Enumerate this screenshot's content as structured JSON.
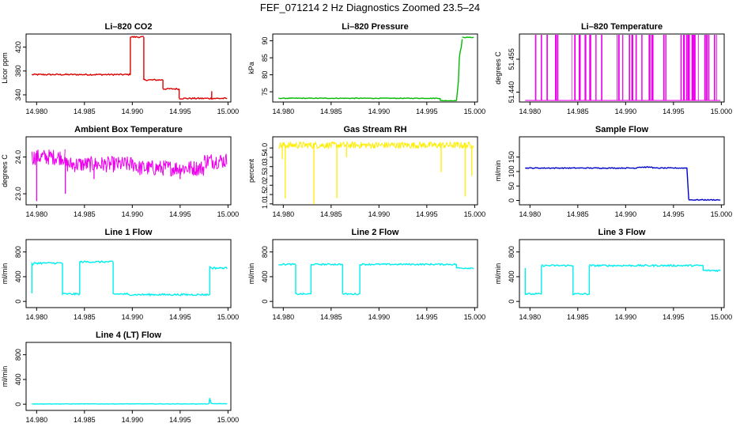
{
  "page": {
    "title": "FEF_071214  2 Hz Diagnostics Zoomed 23.5–24"
  },
  "chart_data": [
    {
      "type": "line",
      "title": "Li–820 CO2",
      "ylabel": "Licor ppm",
      "xlim": [
        14.9789,
        15.0003
      ],
      "ylim": [
        328,
        442
      ],
      "xticks": [
        14.98,
        14.985,
        14.99,
        14.995,
        15.0
      ],
      "xtick_labels": [
        "14.980",
        "14.985",
        "14.990",
        "14.995",
        "15.000"
      ],
      "yticks": [
        340,
        380,
        420
      ],
      "ytick_labels": [
        "340",
        "380",
        "420"
      ],
      "color": "#dd0000",
      "noise": 1.2,
      "series": [
        {
          "x": [
            14.9795,
            14.9898
          ],
          "y": [
            374,
            374
          ]
        },
        {
          "x": [
            14.9898,
            14.9898
          ],
          "y": [
            374,
            437
          ]
        },
        {
          "x": [
            14.9898,
            14.9912
          ],
          "y": [
            437,
            437
          ]
        },
        {
          "x": [
            14.9912,
            14.9912
          ],
          "y": [
            437,
            365
          ]
        },
        {
          "x": [
            14.9912,
            14.9932
          ],
          "y": [
            365,
            365
          ]
        },
        {
          "x": [
            14.9932,
            14.9932
          ],
          "y": [
            365,
            350
          ]
        },
        {
          "x": [
            14.9932,
            14.9949
          ],
          "y": [
            350,
            350
          ]
        },
        {
          "x": [
            14.9949,
            14.9949
          ],
          "y": [
            350,
            334
          ]
        },
        {
          "x": [
            14.9949,
            14.9999
          ],
          "y": [
            334,
            334
          ]
        },
        {
          "x": [
            14.9983,
            14.9983
          ],
          "y": [
            334,
            346
          ]
        }
      ]
    },
    {
      "type": "line",
      "title": "Li–820 Pressure",
      "ylabel": "kPa",
      "xlim": [
        14.9789,
        15.0003
      ],
      "ylim": [
        72,
        92
      ],
      "xticks": [
        14.98,
        14.985,
        14.99,
        14.995,
        15.0
      ],
      "xtick_labels": [
        "14.980",
        "14.985",
        "14.990",
        "14.995",
        "15.000"
      ],
      "yticks": [
        75,
        80,
        85,
        90
      ],
      "ytick_labels": [
        "75",
        "80",
        "85",
        "90"
      ],
      "color": "#00bb00",
      "noise": 0.1,
      "series": [
        {
          "x": [
            14.9795,
            14.9964
          ],
          "y": [
            73.1,
            73.1
          ]
        },
        {
          "x": [
            14.9964,
            14.9964
          ],
          "y": [
            73.1,
            72.4
          ]
        },
        {
          "x": [
            14.9964,
            14.9981
          ],
          "y": [
            72.4,
            72.4
          ]
        },
        {
          "x": [
            14.9981,
            14.9983,
            14.9984,
            14.9985,
            14.9986,
            14.9987
          ],
          "y": [
            72.4,
            78,
            85,
            87,
            88,
            90.5
          ]
        },
        {
          "x": [
            14.9987,
            14.9999
          ],
          "y": [
            91,
            91
          ]
        }
      ]
    },
    {
      "type": "line",
      "title": "Li–820 Temperature",
      "ylabel": "degrees C",
      "xlim": [
        14.9789,
        15.0003
      ],
      "ylim": [
        51.4355,
        51.4665
      ],
      "xticks": [
        14.98,
        14.985,
        14.99,
        14.995,
        15.0
      ],
      "xtick_labels": [
        "14.980",
        "14.985",
        "14.990",
        "14.995",
        "15.000"
      ],
      "yticks": [
        51.44,
        51.455
      ],
      "ytick_labels": [
        "51.440",
        "51.455"
      ],
      "color": "#ee00ee",
      "spike_style": "toggle",
      "base": 51.4362,
      "spike_top": 51.4665,
      "spikes": [
        14.9806,
        14.9812,
        14.9818,
        14.9827,
        14.9829,
        14.9844,
        14.9847,
        14.9852,
        14.9858,
        14.9863,
        14.9869,
        14.9875,
        14.9891,
        14.9893,
        14.9897,
        14.9904,
        14.9907,
        14.9911,
        14.9917,
        14.9925,
        14.9928,
        14.994,
        14.9942,
        14.9958,
        14.9961,
        14.9964,
        14.9966,
        14.997,
        14.9972,
        14.9976,
        14.9983,
        14.9985,
        14.9987,
        14.9993,
        14.9995
      ],
      "x_range": [
        14.9795,
        14.9999
      ]
    },
    {
      "type": "line",
      "title": "Ambient Box Temperature",
      "ylabel": "degrees C",
      "xlim": [
        14.9789,
        15.0003
      ],
      "ylim": [
        22.7,
        24.55
      ],
      "xticks": [
        14.98,
        14.985,
        14.99,
        14.995,
        15.0
      ],
      "xtick_labels": [
        "14.980",
        "14.985",
        "14.990",
        "14.995",
        "15.000"
      ],
      "yticks": [
        23.0,
        24.0
      ],
      "ytick_labels": [
        "23.0",
        "24.0"
      ],
      "color": "#ee00ee",
      "noise_band": 0.22,
      "x_range": [
        14.9795,
        14.9999
      ],
      "segments": [
        {
          "x0": 14.9795,
          "x1": 14.983,
          "y": 24.0
        },
        {
          "x0": 14.983,
          "x1": 14.9905,
          "y": 23.8
        },
        {
          "x0": 14.9905,
          "x1": 14.9975,
          "y": 23.7
        },
        {
          "x0": 14.9975,
          "x1": 14.9999,
          "y": 23.9
        }
      ],
      "drops": [
        {
          "x": 14.98,
          "y": 22.8
        },
        {
          "x": 14.983,
          "y": 23.0
        },
        {
          "x": 14.986,
          "y": 23.4
        },
        {
          "x": 14.995,
          "y": 23.4
        }
      ]
    },
    {
      "type": "line",
      "title": "Gas Stream RH",
      "ylabel": "percent",
      "xlim": [
        14.9789,
        15.0003
      ],
      "ylim": [
        0.95,
        4.6
      ],
      "xticks": [
        14.98,
        14.985,
        14.99,
        14.995,
        15.0
      ],
      "xtick_labels": [
        "14.980",
        "14.985",
        "14.990",
        "14.995",
        "15.000"
      ],
      "yticks": [
        1.0,
        1.5,
        2.0,
        2.5,
        3.0,
        3.5,
        4.0
      ],
      "ytick_labels": [
        "1.0",
        "1.5",
        "2.0",
        "2.5",
        "3.0",
        "3.5",
        "4.0"
      ],
      "color": "#ffee00",
      "noise_band": 0.18,
      "x_range": [
        14.9795,
        14.9999
      ],
      "segments": [
        {
          "x0": 14.9795,
          "x1": 14.9999,
          "y": 4.15
        }
      ],
      "drops": [
        {
          "x": 14.9799,
          "y": 3.4
        },
        {
          "x": 14.9802,
          "y": 1.3
        },
        {
          "x": 14.9832,
          "y": 1.0
        },
        {
          "x": 14.9856,
          "y": 1.3
        },
        {
          "x": 14.9866,
          "y": 3.5
        },
        {
          "x": 14.9965,
          "y": 2.7
        },
        {
          "x": 14.999,
          "y": 1.4
        },
        {
          "x": 14.9997,
          "y": 2.5
        }
      ]
    },
    {
      "type": "line",
      "title": "Sample Flow",
      "ylabel": "ml/min",
      "xlim": [
        14.9789,
        15.0003
      ],
      "ylim": [
        -15,
        220
      ],
      "xticks": [
        14.98,
        14.985,
        14.99,
        14.995,
        15.0
      ],
      "xtick_labels": [
        "14.980",
        "14.985",
        "14.990",
        "14.995",
        "15.000"
      ],
      "yticks": [
        0,
        50,
        100,
        150
      ],
      "ytick_labels": [
        "0",
        "50",
        "100",
        "150"
      ],
      "color": "#0000cc",
      "noise": 1.5,
      "series": [
        {
          "x": [
            14.9795,
            14.9912
          ],
          "y": [
            112,
            112
          ]
        },
        {
          "x": [
            14.9912,
            14.9912
          ],
          "y": [
            112,
            115
          ]
        },
        {
          "x": [
            14.9912,
            14.9928
          ],
          "y": [
            115,
            115
          ]
        },
        {
          "x": [
            14.9928,
            14.9928
          ],
          "y": [
            115,
            112
          ]
        },
        {
          "x": [
            14.9928,
            14.9964
          ],
          "y": [
            112,
            112
          ]
        },
        {
          "x": [
            14.9964,
            14.9966
          ],
          "y": [
            114,
            3
          ]
        },
        {
          "x": [
            14.9966,
            14.9999
          ],
          "y": [
            2,
            2
          ]
        }
      ]
    },
    {
      "type": "line",
      "title": "Line 1 Flow",
      "ylabel": "ml/min",
      "xlim": [
        14.9789,
        15.0003
      ],
      "ylim": [
        -100,
        1000
      ],
      "xticks": [
        14.98,
        14.985,
        14.99,
        14.995,
        15.0
      ],
      "xtick_labels": [
        "14.980",
        "14.985",
        "14.990",
        "14.995",
        "15.000"
      ],
      "yticks": [
        0,
        400,
        800
      ],
      "ytick_labels": [
        "0",
        "400",
        "800"
      ],
      "color": "#00eeee",
      "noise": 14,
      "series": [
        {
          "x": [
            14.9795,
            14.9795,
            14.9797,
            14.9797
          ],
          "y": [
            130,
            600,
            600,
            620
          ]
        },
        {
          "x": [
            14.9797,
            14.9827
          ],
          "y": [
            620,
            620
          ]
        },
        {
          "x": [
            14.9827,
            14.9827,
            14.9845,
            14.9845
          ],
          "y": [
            620,
            120,
            120,
            640
          ]
        },
        {
          "x": [
            14.9845,
            14.988
          ],
          "y": [
            640,
            640
          ]
        },
        {
          "x": [
            14.988,
            14.988,
            14.9895,
            14.9895
          ],
          "y": [
            640,
            120,
            120,
            110
          ]
        },
        {
          "x": [
            14.9895,
            14.9981
          ],
          "y": [
            110,
            110
          ]
        },
        {
          "x": [
            14.9981,
            14.9981,
            14.9983
          ],
          "y": [
            110,
            560,
            540
          ]
        },
        {
          "x": [
            14.9983,
            14.9999
          ],
          "y": [
            540,
            540
          ]
        }
      ]
    },
    {
      "type": "line",
      "title": "Line 2 Flow",
      "ylabel": "ml/min",
      "xlim": [
        14.9789,
        15.0003
      ],
      "ylim": [
        -100,
        1000
      ],
      "xticks": [
        14.98,
        14.985,
        14.99,
        14.995,
        15.0
      ],
      "xtick_labels": [
        "14.980",
        "14.985",
        "14.990",
        "14.995",
        "15.000"
      ],
      "yticks": [
        0,
        400,
        800
      ],
      "ytick_labels": [
        "0",
        "400",
        "800"
      ],
      "color": "#00eeee",
      "noise": 12,
      "series": [
        {
          "x": [
            14.9795,
            14.9813
          ],
          "y": [
            600,
            600
          ]
        },
        {
          "x": [
            14.9813,
            14.9813,
            14.9829,
            14.9829
          ],
          "y": [
            600,
            120,
            120,
            600
          ]
        },
        {
          "x": [
            14.9829,
            14.9862
          ],
          "y": [
            600,
            600
          ]
        },
        {
          "x": [
            14.9862,
            14.9862,
            14.988,
            14.988
          ],
          "y": [
            600,
            120,
            120,
            600
          ]
        },
        {
          "x": [
            14.988,
            14.9981
          ],
          "y": [
            600,
            600
          ]
        },
        {
          "x": [
            14.9981,
            14.9981
          ],
          "y": [
            600,
            540
          ]
        },
        {
          "x": [
            14.9981,
            14.9999
          ],
          "y": [
            540,
            540
          ]
        }
      ]
    },
    {
      "type": "line",
      "title": "Line 3 Flow",
      "ylabel": "ml/min",
      "xlim": [
        14.9789,
        15.0003
      ],
      "ylim": [
        -100,
        1000
      ],
      "xticks": [
        14.98,
        14.985,
        14.99,
        14.995,
        15.0
      ],
      "xtick_labels": [
        "14.980",
        "14.985",
        "14.990",
        "14.995",
        "15.000"
      ],
      "yticks": [
        0,
        400,
        800
      ],
      "ytick_labels": [
        "0",
        "400",
        "800"
      ],
      "color": "#00eeee",
      "noise": 14,
      "series": [
        {
          "x": [
            14.9795,
            14.9795,
            14.9797,
            14.9812
          ],
          "y": [
            540,
            120,
            120,
            120
          ]
        },
        {
          "x": [
            14.9812,
            14.9812
          ],
          "y": [
            120,
            580
          ]
        },
        {
          "x": [
            14.9812,
            14.9845
          ],
          "y": [
            580,
            580
          ]
        },
        {
          "x": [
            14.9845,
            14.9845,
            14.9862,
            14.9862
          ],
          "y": [
            580,
            120,
            120,
            580
          ]
        },
        {
          "x": [
            14.9862,
            14.9981
          ],
          "y": [
            580,
            580
          ]
        },
        {
          "x": [
            14.9981,
            14.9981
          ],
          "y": [
            580,
            500
          ]
        },
        {
          "x": [
            14.9981,
            14.9999
          ],
          "y": [
            500,
            500
          ]
        }
      ]
    },
    {
      "type": "line",
      "title": "Line 4 (LT) Flow",
      "ylabel": "ml/min",
      "xlim": [
        14.9789,
        15.0003
      ],
      "ylim": [
        -100,
        1000
      ],
      "xticks": [
        14.98,
        14.985,
        14.99,
        14.995,
        15.0
      ],
      "xtick_labels": [
        "14.980",
        "14.985",
        "14.990",
        "14.995",
        "15.000"
      ],
      "yticks": [
        0,
        400,
        800
      ],
      "ytick_labels": [
        "0",
        "400",
        "800"
      ],
      "color": "#00eeee",
      "noise": 3,
      "series": [
        {
          "x": [
            14.9795,
            14.998
          ],
          "y": [
            5,
            5
          ]
        },
        {
          "x": [
            14.998,
            14.9981,
            14.9982,
            14.9983
          ],
          "y": [
            5,
            100,
            30,
            8
          ]
        },
        {
          "x": [
            14.9983,
            14.9999
          ],
          "y": [
            8,
            8
          ]
        }
      ]
    }
  ]
}
